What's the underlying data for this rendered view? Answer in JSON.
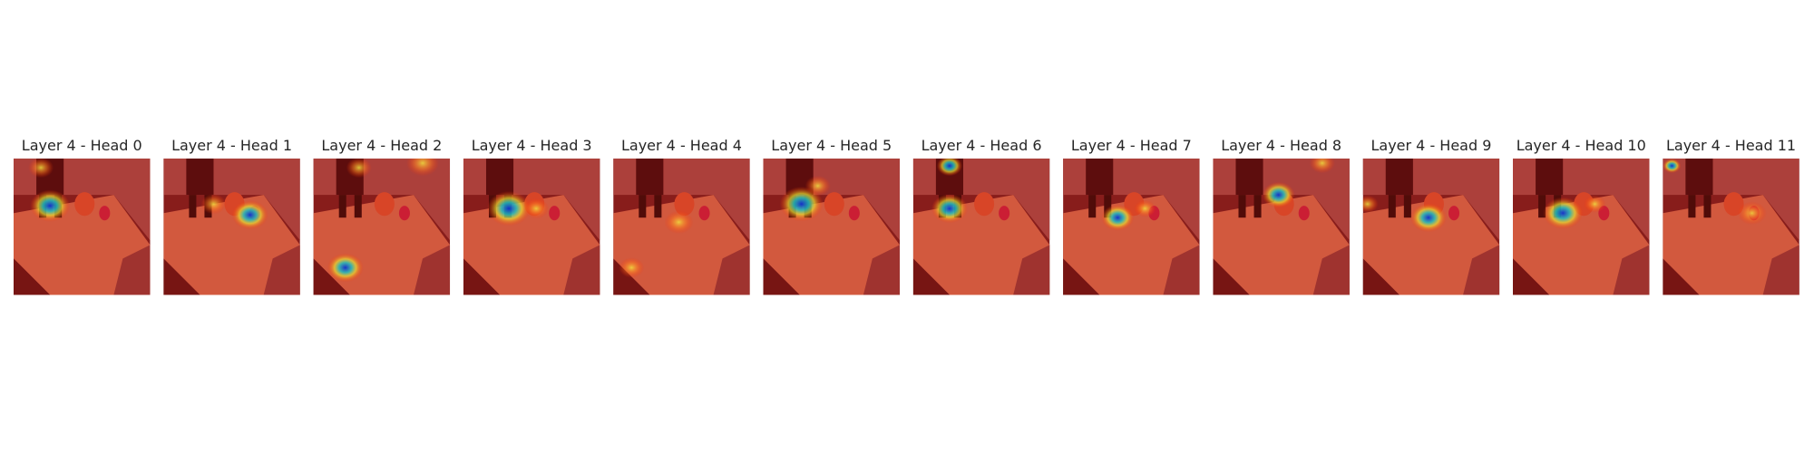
{
  "panels": [
    {
      "title": "Layer 4 - Head 0"
    },
    {
      "title": "Layer 4 - Head 1"
    },
    {
      "title": "Layer 4 - Head 2"
    },
    {
      "title": "Layer 4 - Head 3"
    },
    {
      "title": "Layer 4 - Head 4"
    },
    {
      "title": "Layer 4 - Head 5"
    },
    {
      "title": "Layer 4 - Head 6"
    },
    {
      "title": "Layer 4 - Head 7"
    },
    {
      "title": "Layer 4 - Head 8"
    },
    {
      "title": "Layer 4 - Head 9"
    },
    {
      "title": "Layer 4 - Head 10"
    },
    {
      "title": "Layer 4 - Head 11"
    }
  ]
}
